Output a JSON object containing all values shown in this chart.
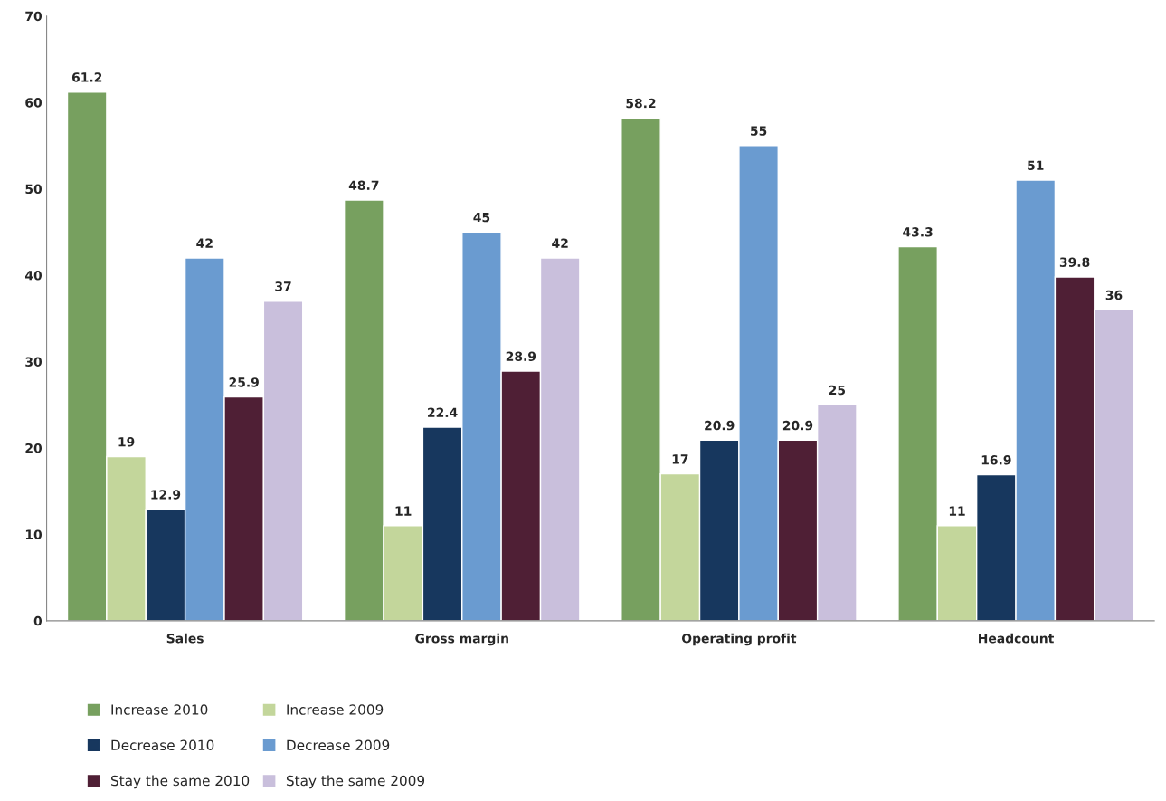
{
  "chart_data": {
    "type": "bar",
    "categories": [
      "Sales",
      "Gross margin",
      "Operating profit",
      "Headcount"
    ],
    "series": [
      {
        "name": "Increase 2010",
        "color": "#77a05f",
        "values": [
          61.2,
          48.7,
          58.2,
          43.3
        ]
      },
      {
        "name": "Increase 2009",
        "color": "#c3d69b",
        "values": [
          19,
          11,
          17,
          11
        ]
      },
      {
        "name": "Decrease 2010",
        "color": "#17375e",
        "values": [
          12.9,
          22.4,
          20.9,
          16.9
        ]
      },
      {
        "name": "Decrease 2009",
        "color": "#6a9bd0",
        "values": [
          42,
          45,
          55,
          51
        ]
      },
      {
        "name": "Stay the same 2010",
        "color": "#4f1f35",
        "values": [
          25.9,
          28.9,
          20.9,
          39.8
        ]
      },
      {
        "name": "Stay the same 2009",
        "color": "#c9bfdc",
        "values": [
          37,
          42,
          25,
          36
        ]
      }
    ],
    "ylim": [
      0,
      70
    ],
    "yticks": [
      0,
      10,
      20,
      30,
      40,
      50,
      60,
      70
    ],
    "data_labels": true,
    "grid": false,
    "legend": "bottom left"
  }
}
